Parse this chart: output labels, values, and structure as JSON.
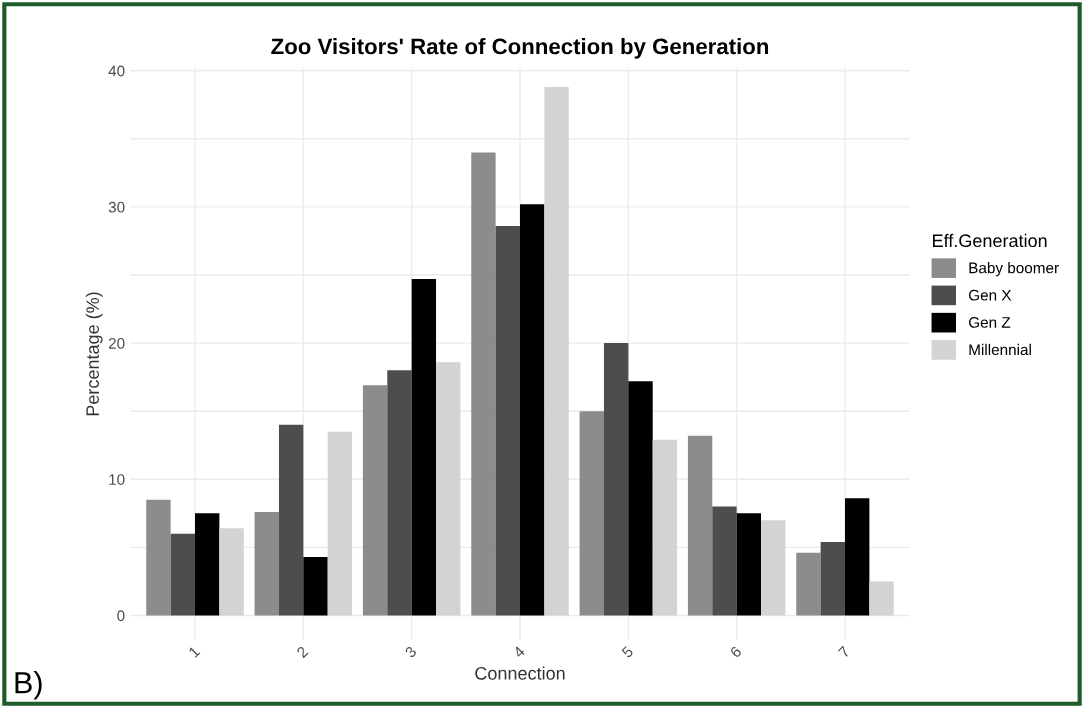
{
  "chart_data": {
    "type": "bar",
    "title": "Zoo Visitors' Rate of Connection by Generation",
    "xlabel": "Connection",
    "ylabel": "Percentage (%)",
    "legend_title": "Eff.Generation",
    "categories": [
      "1",
      "2",
      "3",
      "4",
      "5",
      "6",
      "7"
    ],
    "series": [
      {
        "name": "Baby boomer",
        "color": "#8c8c8c",
        "values": [
          8.5,
          7.6,
          16.9,
          34.0,
          15.0,
          13.2,
          4.6
        ]
      },
      {
        "name": "Gen X",
        "color": "#4d4d4d",
        "values": [
          6.0,
          14.0,
          18.0,
          28.6,
          20.0,
          8.0,
          5.4
        ]
      },
      {
        "name": "Gen Z",
        "color": "#000000",
        "values": [
          7.5,
          4.3,
          24.7,
          30.2,
          17.2,
          7.5,
          8.6
        ]
      },
      {
        "name": "Millennial",
        "color": "#d3d3d3",
        "values": [
          6.4,
          13.5,
          18.6,
          38.8,
          12.9,
          7.0,
          2.5
        ]
      }
    ],
    "ylim": [
      -1.8,
      40.2
    ],
    "yticks": [
      0,
      {
        "value": 5,
        "label": null
      },
      10,
      {
        "value": 15,
        "label": null
      },
      20,
      {
        "value": 25,
        "label": null
      },
      30,
      {
        "value": 35,
        "label": null
      },
      40
    ],
    "grid": true,
    "legend": "right",
    "annotations": [
      "B)"
    ]
  }
}
